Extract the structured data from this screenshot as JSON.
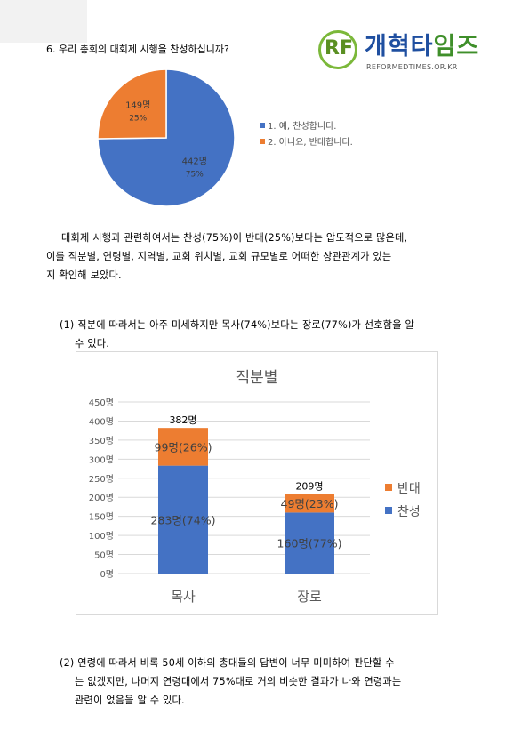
{
  "question": "6. 우리 총회의 대회제 시행을 찬성하십니까?",
  "logo": {
    "name_blue": "개혁타",
    "name_green": "임즈",
    "site": "REFORMEDTIMES.OR.KR"
  },
  "pie": {
    "slices": [
      {
        "count_label": "442명",
        "percent_label": "75%",
        "value": 442,
        "color": "#4472c4",
        "legend": "1. 예, 찬성합니다."
      },
      {
        "count_label": "149명",
        "percent_label": "25%",
        "value": 149,
        "color": "#ed7d31",
        "legend": "2. 아니요, 반대합니다."
      }
    ]
  },
  "para1": {
    "lines": [
      "대회제 시행과 관련하여서는 찬성(75%)이 반대(25%)보다는 압도적으로 많은데,",
      "이를 직분별, 연령별, 지역별, 교회 위치별, 교회 규모별로 어떠한 상관관계가 있는",
      "지 확인해 보았다."
    ]
  },
  "para2": {
    "lines": [
      "(1) 직분에 따라서는 아주 미세하지만 목사(74%)보다는 장로(77%)가 선호함을 알",
      "수 있다."
    ]
  },
  "chart_data": {
    "type": "bar",
    "stacked": true,
    "title": "직분별",
    "categories": [
      "목사",
      "장로"
    ],
    "series": [
      {
        "name": "찬성",
        "values": [
          283,
          160
        ],
        "labels": [
          "283명(74%)",
          "160명(77%)"
        ],
        "color": "#4472c4"
      },
      {
        "name": "반대",
        "values": [
          99,
          49
        ],
        "labels": [
          "99명(26%)",
          "49명(23%)"
        ],
        "color": "#ed7d31"
      }
    ],
    "totals": [
      "382명",
      "209명"
    ],
    "total_values": [
      382,
      209
    ],
    "ylim": [
      0,
      450
    ],
    "yticks": [
      0,
      50,
      100,
      150,
      200,
      250,
      300,
      350,
      400,
      450
    ],
    "ytick_labels": [
      "0명",
      "50명",
      "100명",
      "150명",
      "200명",
      "250명",
      "300명",
      "350명",
      "400명",
      "450명"
    ],
    "grid": true,
    "legend_position": "right"
  },
  "para3": {
    "lines": [
      "(2) 연령에 따라서 비록 50세 이하의 총대들의 답변이 너무 미미하여 판단할 수",
      "는 없겠지만, 나머지 연령대에서 75%대로 거의 비슷한 결과가 나와 연령과는",
      "관련이 없음을 알 수 있다."
    ]
  }
}
